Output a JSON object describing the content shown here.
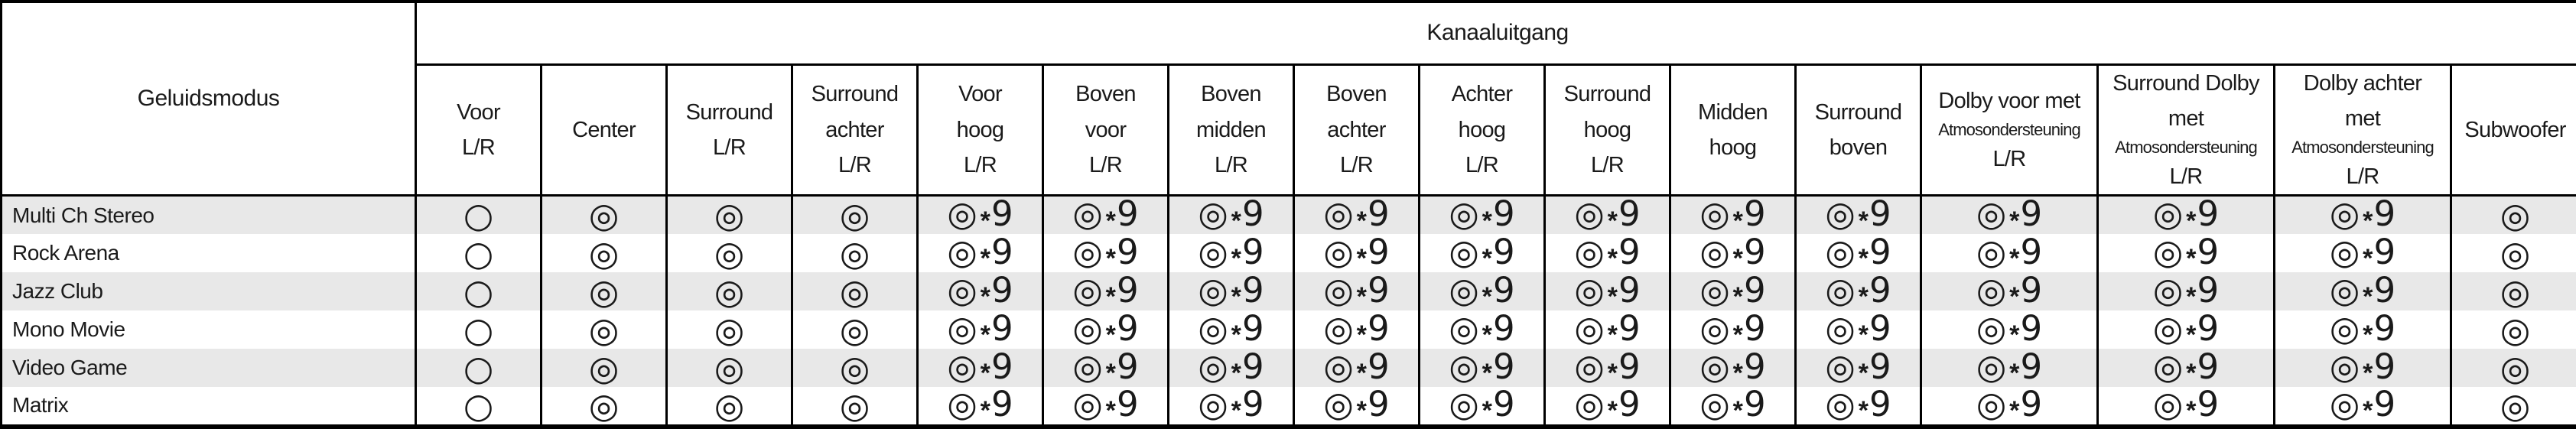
{
  "table": {
    "corner_header": "Geluidsmodus",
    "group_header": "Kanaaluitgang",
    "columns": [
      {
        "label": "Voor\nL/R"
      },
      {
        "label": "Center"
      },
      {
        "label": "Surround\nL/R"
      },
      {
        "label": "Surround\nachter\nL/R"
      },
      {
        "label": "Voor\nhoog\nL/R"
      },
      {
        "label": "Boven\nvoor\nL/R"
      },
      {
        "label": "Boven\nmidden\nL/R"
      },
      {
        "label": "Boven\nachter\nL/R"
      },
      {
        "label": "Achter\nhoog\nL/R"
      },
      {
        "label": "Surround\nhoog\nL/R"
      },
      {
        "label": "Midden\nhoog"
      },
      {
        "label": "Surround\nboven"
      },
      {
        "top": "Dolby voor met",
        "small": "Atmosondersteuning",
        "bottom": "L/R"
      },
      {
        "top": "Surround Dolby\nmet",
        "small": "Atmosondersteuning",
        "bottom": "L/R"
      },
      {
        "top": "Dolby achter\nmet",
        "small": "Atmosondersteuning",
        "bottom": "L/R"
      },
      {
        "label": "Subwoofer"
      }
    ],
    "rows": [
      {
        "label": "Multi Ch Stereo",
        "cells": [
          "○",
          "◎",
          "◎",
          "◎",
          "◎*9",
          "◎*9",
          "◎*9",
          "◎*9",
          "◎*9",
          "◎*9",
          "◎*9",
          "◎*9",
          "◎*9",
          "◎*9",
          "◎*9",
          "◎"
        ]
      },
      {
        "label": "Rock Arena",
        "cells": [
          "○",
          "◎",
          "◎",
          "◎",
          "◎*9",
          "◎*9",
          "◎*9",
          "◎*9",
          "◎*9",
          "◎*9",
          "◎*9",
          "◎*9",
          "◎*9",
          "◎*9",
          "◎*9",
          "◎"
        ]
      },
      {
        "label": "Jazz Club",
        "cells": [
          "○",
          "◎",
          "◎",
          "◎",
          "◎*9",
          "◎*9",
          "◎*9",
          "◎*9",
          "◎*9",
          "◎*9",
          "◎*9",
          "◎*9",
          "◎*9",
          "◎*9",
          "◎*9",
          "◎"
        ]
      },
      {
        "label": "Mono Movie",
        "cells": [
          "○",
          "◎",
          "◎",
          "◎",
          "◎*9",
          "◎*9",
          "◎*9",
          "◎*9",
          "◎*9",
          "◎*9",
          "◎*9",
          "◎*9",
          "◎*9",
          "◎*9",
          "◎*9",
          "◎"
        ]
      },
      {
        "label": "Video Game",
        "cells": [
          "○",
          "◎",
          "◎",
          "◎",
          "◎*9",
          "◎*9",
          "◎*9",
          "◎*9",
          "◎*9",
          "◎*9",
          "◎*9",
          "◎*9",
          "◎*9",
          "◎*9",
          "◎*9",
          "◎"
        ]
      },
      {
        "label": "Matrix",
        "cells": [
          "○",
          "◎",
          "◎",
          "◎",
          "◎*9",
          "◎*9",
          "◎*9",
          "◎*9",
          "◎*9",
          "◎*9",
          "◎*9",
          "◎*9",
          "◎*9",
          "◎*9",
          "◎*9",
          "◎"
        ]
      }
    ],
    "colors": {
      "stripe_gray": "#e8e8e8",
      "border_black": "#000000"
    }
  }
}
